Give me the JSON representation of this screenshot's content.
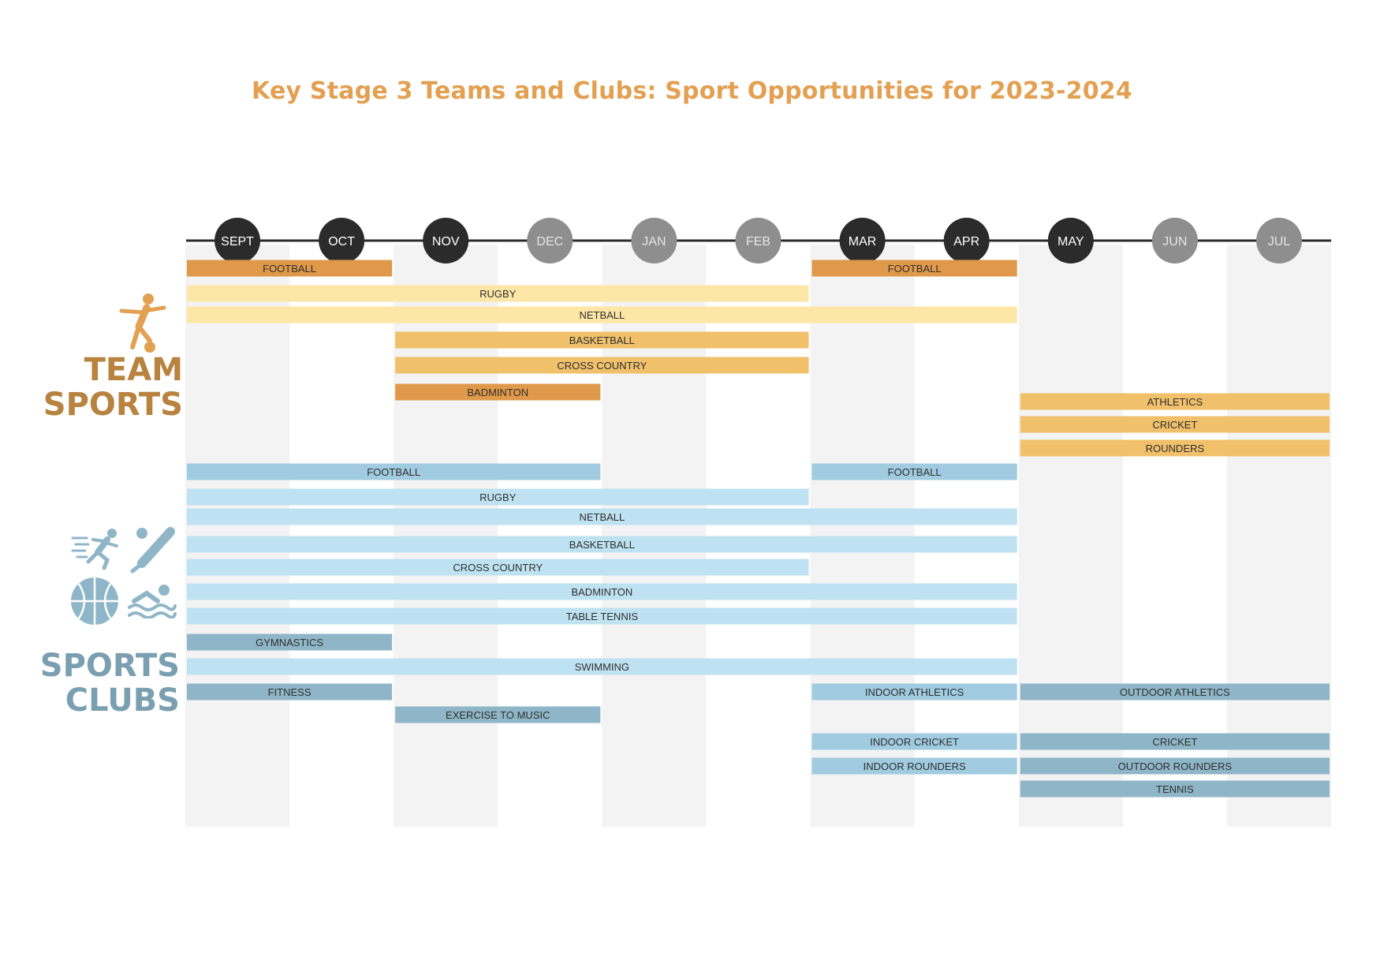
{
  "page": {
    "title": "Key Stage 3 Teams and Clubs: Sport Opportunities for 2023-2024"
  },
  "sections": {
    "team_sports": {
      "label_line1": "TEAM",
      "label_line2": "SPORTS",
      "color": "#b8823f"
    },
    "sports_clubs": {
      "label_line1": "SPORTS",
      "label_line2": "CLUBS",
      "color": "#7a9fb1"
    }
  },
  "icons": {
    "team": "football-player-icon",
    "clubs": [
      "runner-icon",
      "cricket-bat-icon",
      "basketball-icon",
      "swimmer-icon"
    ]
  },
  "colors": {
    "dark_month": "#2b2b2b",
    "grey_month": "#8e8e8e",
    "orange": "#e0994a",
    "light_yellow": "#fde6a6",
    "mid_orange": "#f0c06b",
    "light_blue": "#bfe2f2",
    "mid_blue": "#a0cbe0",
    "steel_blue": "#8fb6c8",
    "column_shade": "#f3f3f3"
  },
  "chart_data": {
    "type": "gantt",
    "months": [
      {
        "label": "SEPT",
        "style": "dark"
      },
      {
        "label": "OCT",
        "style": "dark"
      },
      {
        "label": "NOV",
        "style": "dark"
      },
      {
        "label": "DEC",
        "style": "grey"
      },
      {
        "label": "JAN",
        "style": "grey"
      },
      {
        "label": "FEB",
        "style": "grey"
      },
      {
        "label": "MAR",
        "style": "dark"
      },
      {
        "label": "APR",
        "style": "dark"
      },
      {
        "label": "MAY",
        "style": "dark"
      },
      {
        "label": "JUN",
        "style": "grey"
      },
      {
        "label": "JUL",
        "style": "grey"
      }
    ],
    "team_sports": [
      {
        "label": "FOOTBALL",
        "start": "SEPT",
        "end": "OCT",
        "color": "orange"
      },
      {
        "label": "FOOTBALL",
        "start": "MAR",
        "end": "APR",
        "color": "orange"
      },
      {
        "label": "RUGBY",
        "start": "SEPT",
        "end": "FEB",
        "color": "light_yellow"
      },
      {
        "label": "NETBALL",
        "start": "SEPT",
        "end": "APR",
        "color": "light_yellow"
      },
      {
        "label": "BASKETBALL",
        "start": "NOV",
        "end": "FEB",
        "color": "mid_orange"
      },
      {
        "label": "CROSS COUNTRY",
        "start": "NOV",
        "end": "FEB",
        "color": "mid_orange"
      },
      {
        "label": "BADMINTON",
        "start": "NOV",
        "end": "DEC",
        "color": "orange"
      },
      {
        "label": "ATHLETICS",
        "start": "MAY",
        "end": "JUL",
        "color": "mid_orange"
      },
      {
        "label": "CRICKET",
        "start": "MAY",
        "end": "JUL",
        "color": "mid_orange"
      },
      {
        "label": "ROUNDERS",
        "start": "MAY",
        "end": "JUL",
        "color": "mid_orange"
      }
    ],
    "sports_clubs": [
      {
        "label": "FOOTBALL",
        "start": "SEPT",
        "end": "DEC",
        "color": "mid_blue"
      },
      {
        "label": "FOOTBALL",
        "start": "MAR",
        "end": "APR",
        "color": "mid_blue"
      },
      {
        "label": "RUGBY",
        "start": "SEPT",
        "end": "FEB",
        "color": "light_blue"
      },
      {
        "label": "NETBALL",
        "start": "SEPT",
        "end": "APR",
        "color": "light_blue"
      },
      {
        "label": "BASKETBALL",
        "start": "SEPT",
        "end": "APR",
        "color": "light_blue"
      },
      {
        "label": "CROSS COUNTRY",
        "start": "SEPT",
        "end": "FEB",
        "color": "light_blue"
      },
      {
        "label": "BADMINTON",
        "start": "SEPT",
        "end": "APR",
        "color": "light_blue"
      },
      {
        "label": "TABLE TENNIS",
        "start": "SEPT",
        "end": "APR",
        "color": "light_blue"
      },
      {
        "label": "GYMNASTICS",
        "start": "SEPT",
        "end": "OCT",
        "color": "steel_blue"
      },
      {
        "label": "SWIMMING",
        "start": "SEPT",
        "end": "APR",
        "color": "light_blue"
      },
      {
        "label": "FITNESS",
        "start": "SEPT",
        "end": "OCT",
        "color": "steel_blue"
      },
      {
        "label": "INDOOR ATHLETICS",
        "start": "MAR",
        "end": "APR",
        "color": "mid_blue"
      },
      {
        "label": "OUTDOOR ATHLETICS",
        "start": "MAY",
        "end": "JUL",
        "color": "steel_blue"
      },
      {
        "label": "EXERCISE TO MUSIC",
        "start": "NOV",
        "end": "DEC",
        "color": "steel_blue"
      },
      {
        "label": "INDOOR CRICKET",
        "start": "MAR",
        "end": "APR",
        "color": "mid_blue"
      },
      {
        "label": "CRICKET",
        "start": "MAY",
        "end": "JUL",
        "color": "steel_blue"
      },
      {
        "label": "INDOOR ROUNDERS",
        "start": "MAR",
        "end": "APR",
        "color": "mid_blue"
      },
      {
        "label": "OUTDOOR ROUNDERS",
        "start": "MAY",
        "end": "JUL",
        "color": "steel_blue"
      },
      {
        "label": "TENNIS",
        "start": "MAY",
        "end": "JUL",
        "color": "steel_blue"
      }
    ]
  }
}
